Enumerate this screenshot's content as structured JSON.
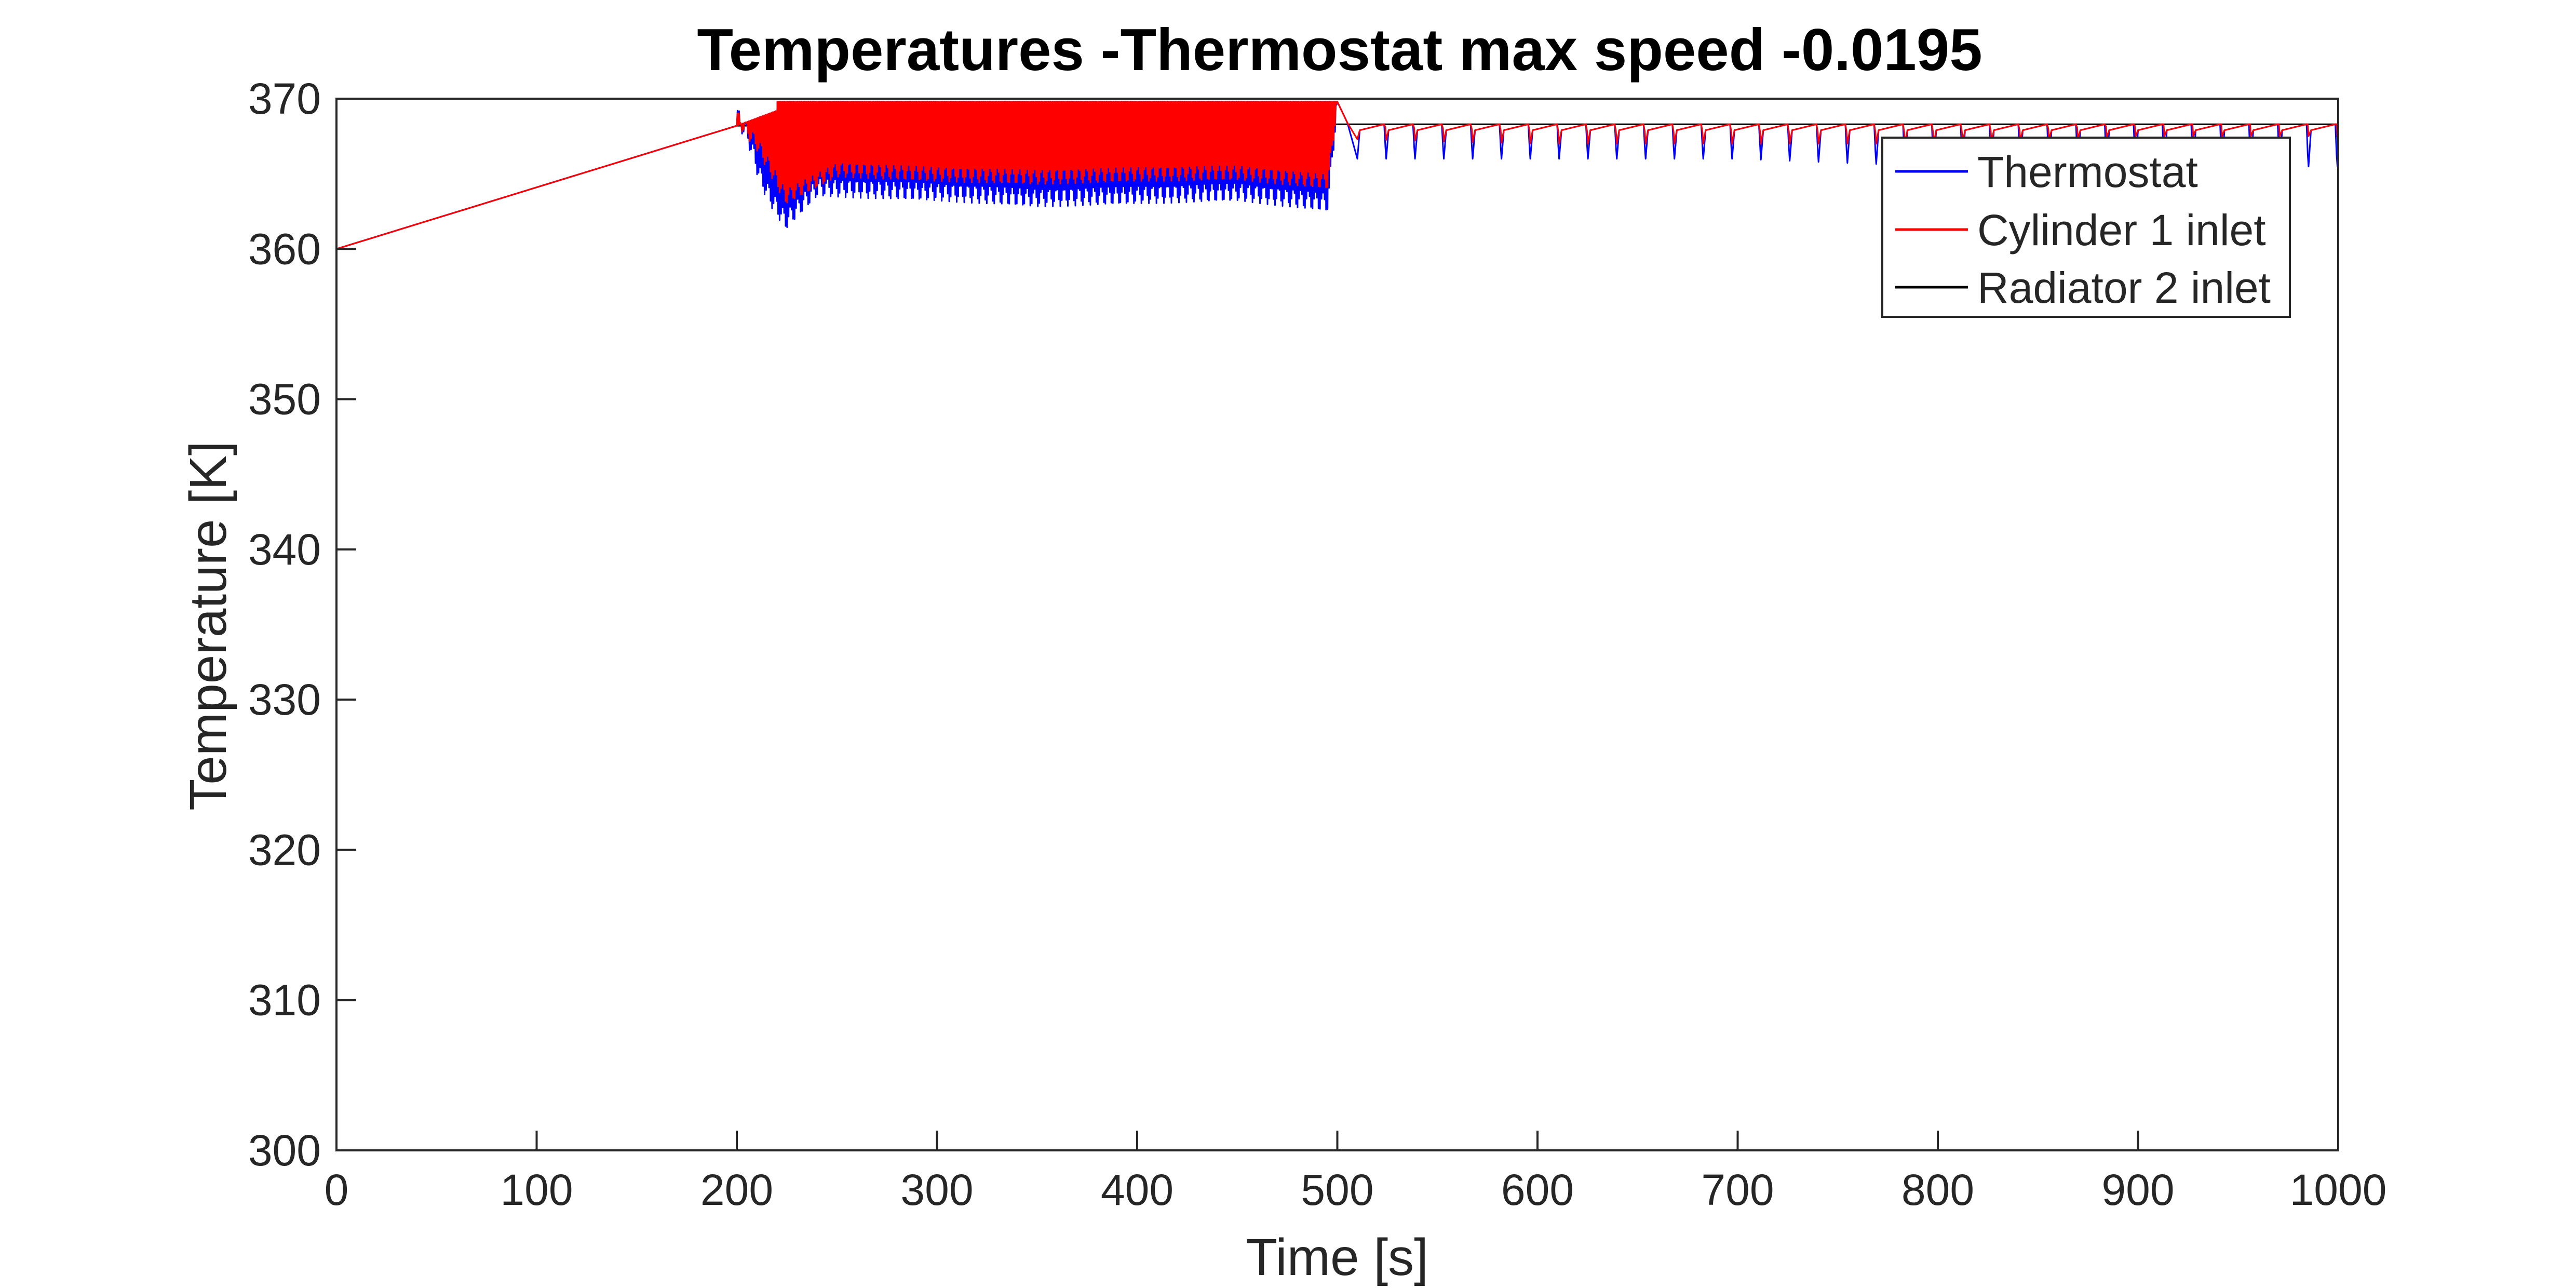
{
  "chart_data": {
    "type": "line",
    "title": "Temperatures -Thermostat max speed -0.0195",
    "xlabel": "Time [s]",
    "ylabel": "Temperature [K]",
    "xlim": [
      0,
      1000
    ],
    "ylim": [
      300,
      370
    ],
    "xticks": [
      0,
      100,
      200,
      300,
      400,
      500,
      600,
      700,
      800,
      900,
      1000
    ],
    "yticks": [
      300,
      310,
      320,
      330,
      340,
      350,
      360,
      370
    ],
    "xtick_labels": [
      "0",
      "100",
      "200",
      "300",
      "400",
      "500",
      "600",
      "700",
      "800",
      "900",
      "1000"
    ],
    "ytick_labels": [
      "300",
      "310",
      "320",
      "330",
      "340",
      "350",
      "360",
      "370"
    ],
    "grid": false,
    "legend_position": "top-right",
    "series": [
      {
        "name": "Thermostat",
        "color": "#0000ff",
        "x": [
          0,
          200,
          205,
          212,
          218,
          224,
          240,
          300,
          350,
          400,
          450,
          495,
          500,
          505,
          510,
          600,
          700,
          800,
          900,
          1000
        ],
        "y": [
          360,
          368.2,
          367.0,
          364.0,
          362.5,
          361.3,
          363.5,
          363.2,
          362.8,
          363.0,
          363.2,
          362.5,
          369.8,
          368.5,
          366.0,
          366.0,
          366.0,
          365.5,
          365.4,
          365.5
        ]
      },
      {
        "name": "Cylinder 1 inlet",
        "color": "#ff0000",
        "x": [
          0,
          200,
          210,
          224,
          250,
          300,
          350,
          400,
          450,
          495,
          500,
          510,
          600,
          700,
          800,
          900,
          1000
        ],
        "y": [
          360,
          368.2,
          366.5,
          363.0,
          364.8,
          364.5,
          364.3,
          364.5,
          364.6,
          364.0,
          369.8,
          367.3,
          367.0,
          367.0,
          367.0,
          367.5,
          367.5
        ]
      },
      {
        "name": "Radiator 2 inlet",
        "color": "#000000",
        "x": [
          0,
          200,
          500,
          1000
        ],
        "y": [
          360,
          368.2,
          368.3,
          368.3
        ]
      }
    ]
  }
}
